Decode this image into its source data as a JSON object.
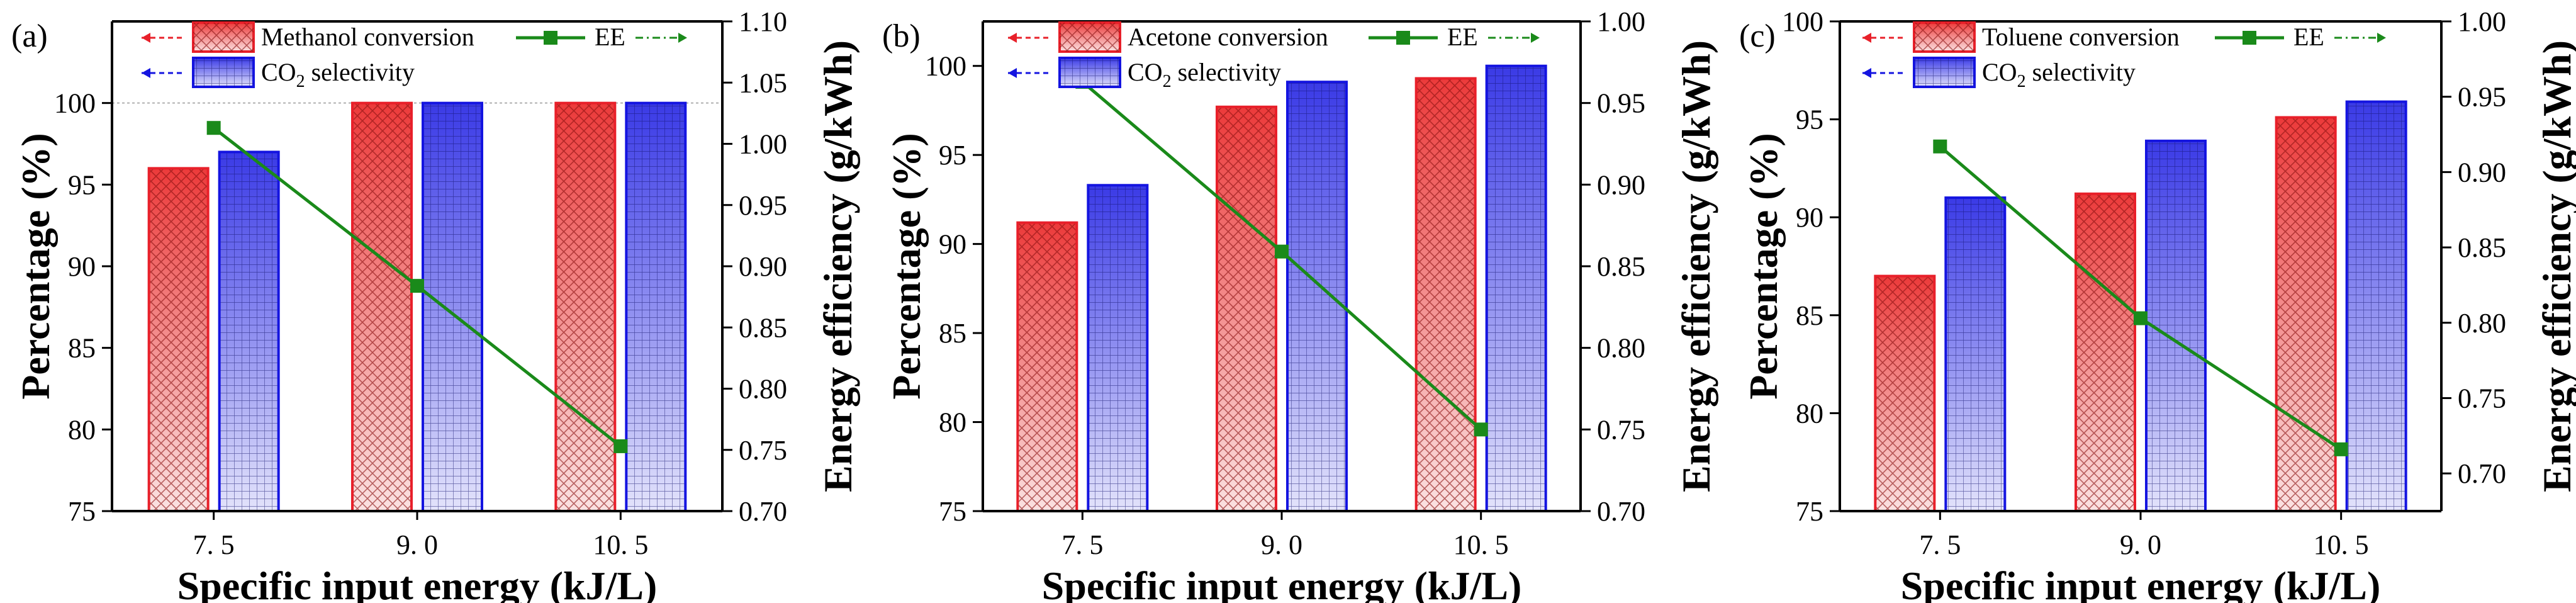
{
  "figure": {
    "panels": [
      "(a)",
      "(b)",
      "(c)"
    ]
  },
  "colors": {
    "conversion": "#e8202a",
    "selectivity": "#1414e0",
    "ee": "#1a8a1a",
    "gridline": "#b0b0b0"
  },
  "chart_data": [
    {
      "type": "bar",
      "panel_label": "(a)",
      "categories": [
        "7. 5",
        "9. 0",
        "10. 5"
      ],
      "series": [
        {
          "name": "Methanol conversion",
          "axis": "left",
          "values": [
            96.0,
            100.0,
            100.0
          ]
        },
        {
          "name": "CO2 selectivity",
          "axis": "left",
          "values": [
            97.0,
            100.0,
            100.0
          ]
        },
        {
          "name": "EE",
          "axis": "right",
          "type": "line",
          "values": [
            1.013,
            0.884,
            0.753
          ]
        }
      ],
      "legend": {
        "conversion": "Methanol conversion",
        "selectivity_pre": "CO",
        "selectivity_sub": "2",
        "selectivity_post": " selectivity",
        "ee": "EE"
      },
      "xlabel": "Specific input energy (kJ/L)",
      "ylabel": "Percentage (%)",
      "y2label": "Energy efficiency (g/kWh)",
      "ylim": [
        75,
        105
      ],
      "yticks": [
        "75",
        "80",
        "85",
        "90",
        "95",
        "100"
      ],
      "y2lim": [
        0.7,
        1.1
      ],
      "y2ticks": [
        "0.70",
        "0.75",
        "0.80",
        "0.85",
        "0.90",
        "0.95",
        "1.00",
        "1.05",
        "1.10"
      ],
      "reference_line": 100
    },
    {
      "type": "bar",
      "panel_label": "(b)",
      "categories": [
        "7. 5",
        "9. 0",
        "10. 5"
      ],
      "series": [
        {
          "name": "Acetone conversion",
          "axis": "left",
          "values": [
            91.2,
            97.7,
            99.3
          ]
        },
        {
          "name": "CO2 selectivity",
          "axis": "left",
          "values": [
            93.3,
            99.1,
            100.0
          ]
        },
        {
          "name": "EE",
          "axis": "right",
          "type": "line",
          "values": [
            0.963,
            0.859,
            0.75
          ]
        }
      ],
      "legend": {
        "conversion": "Acetone conversion",
        "selectivity_pre": "CO",
        "selectivity_sub": "2",
        "selectivity_post": " selectivity",
        "ee": "EE"
      },
      "xlabel": "Specific input energy (kJ/L)",
      "ylabel": "Percentage (%)",
      "y2label": "Energy efficiency (g/kWh)",
      "ylim": [
        75,
        102.5
      ],
      "yticks": [
        "75",
        "80",
        "85",
        "90",
        "95",
        "100"
      ],
      "y2lim": [
        0.7,
        1.0
      ],
      "y2ticks": [
        "0.70",
        "0.75",
        "0.80",
        "0.85",
        "0.90",
        "0.95",
        "1.00"
      ]
    },
    {
      "type": "bar",
      "panel_label": "(c)",
      "categories": [
        "7. 5",
        "9. 0",
        "10. 5"
      ],
      "series": [
        {
          "name": "Toluene conversion",
          "axis": "left",
          "values": [
            87.0,
            91.2,
            95.1
          ]
        },
        {
          "name": "CO2 selectivity",
          "axis": "left",
          "values": [
            91.0,
            93.9,
            95.9
          ]
        },
        {
          "name": "EE",
          "axis": "right",
          "type": "line",
          "values": [
            0.917,
            0.803,
            0.716
          ]
        }
      ],
      "legend": {
        "conversion": "Toluene conversion",
        "selectivity_pre": "CO",
        "selectivity_sub": "2",
        "selectivity_post": " selectivity",
        "ee": "EE"
      },
      "xlabel": "Specific input energy (kJ/L)",
      "ylabel": "Percentage (%)",
      "y2label": "Energy efficiency (g/kWh)",
      "ylim": [
        75,
        100
      ],
      "yticks": [
        "75",
        "80",
        "85",
        "90",
        "95",
        "100"
      ],
      "y2lim": [
        0.675,
        1.0
      ],
      "y2ticks": [
        "0.70",
        "0.75",
        "0.80",
        "0.85",
        "0.90",
        "0.95",
        "1.00"
      ]
    }
  ]
}
